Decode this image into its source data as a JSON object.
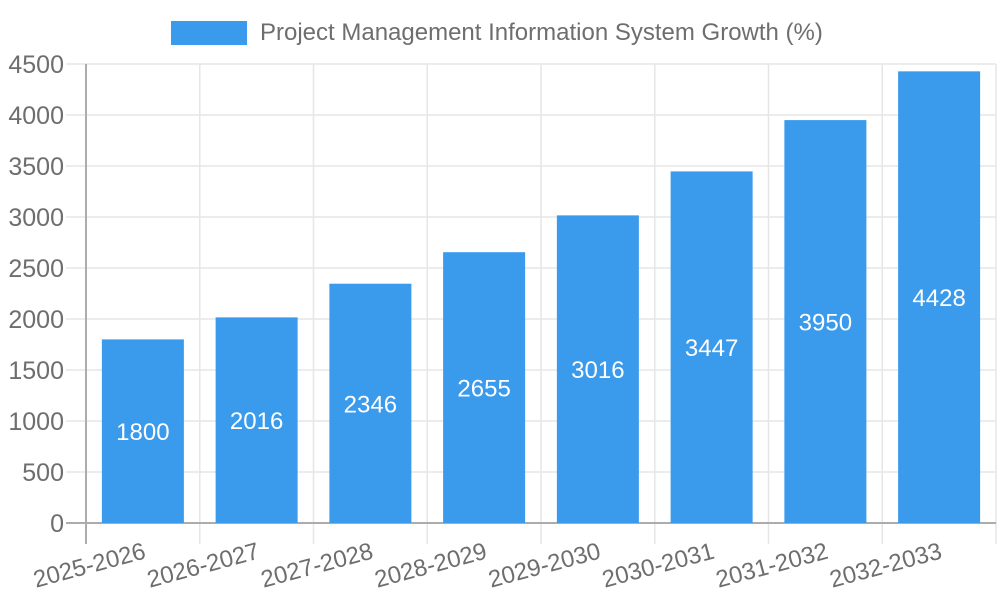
{
  "chart_data": {
    "type": "bar",
    "title": "",
    "legend": [
      "Project Management Information System Growth (%)"
    ],
    "legend_position": "top",
    "categories": [
      "2025-2026",
      "2026-2027",
      "2027-2028",
      "2028-2029",
      "2029-2030",
      "2030-2031",
      "2031-2032",
      "2032-2033"
    ],
    "values": [
      1800,
      2016,
      2346,
      2655,
      3016,
      3447,
      3950,
      4428
    ],
    "value_labels": [
      "1800",
      "2016",
      "2346",
      "2655",
      "3016",
      "3447",
      "3950",
      "4428"
    ],
    "xlabel": "",
    "ylabel": "",
    "ylim": [
      0,
      4500
    ],
    "ytick_step": 500,
    "yticks": [
      "0",
      "500",
      "1000",
      "1500",
      "2000",
      "2500",
      "3000",
      "3500",
      "4000",
      "4500"
    ],
    "grid": true,
    "x_label_rotation_deg": -15,
    "colors": {
      "bar": "#3A9AEC",
      "value_label": "#FFFFFF",
      "axis_text": "#6E6E6E",
      "grid_line": "#E6E6E6",
      "axis_line": "#ACACAC",
      "background": "#FFFFFF"
    }
  }
}
